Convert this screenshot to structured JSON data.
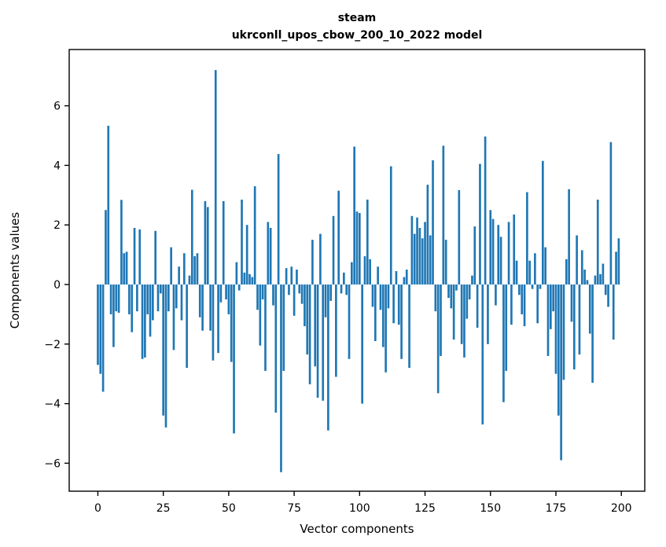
{
  "chart_data": {
    "type": "bar",
    "title": "steam",
    "subtitle": "ukrconll_upos_cbow_200_10_2022 model",
    "xlabel": "Vector components",
    "ylabel": "Components values",
    "bar_color": "#1f77b4",
    "axis_color": "#000000",
    "background_color": "#ffffff",
    "legend": "none",
    "grid": false,
    "n_components": 200,
    "xticks": [
      0,
      25,
      50,
      75,
      100,
      125,
      150,
      175,
      200
    ],
    "yticks": [
      -6,
      -4,
      -2,
      0,
      2,
      4,
      6
    ],
    "xlim": [
      -10.95,
      208.95
    ],
    "ylim": [
      -6.94,
      7.89
    ],
    "values": [
      -2.7,
      -3.0,
      -3.6,
      2.5,
      5.33,
      -1.0,
      -2.1,
      -0.9,
      -0.95,
      2.84,
      1.05,
      1.1,
      -1.0,
      -1.6,
      1.9,
      -0.9,
      1.85,
      -2.5,
      -2.45,
      -1.0,
      -1.75,
      -1.2,
      1.8,
      -0.9,
      -0.3,
      -4.4,
      -4.8,
      -0.9,
      1.25,
      -2.2,
      -0.8,
      0.6,
      -1.2,
      1.05,
      -2.8,
      0.3,
      3.18,
      0.95,
      1.05,
      -1.1,
      -1.55,
      2.8,
      2.6,
      -1.55,
      -2.55,
      7.2,
      -2.3,
      -0.6,
      2.8,
      -0.5,
      -1.0,
      -2.6,
      -5.0,
      0.75,
      -0.2,
      2.85,
      0.4,
      2.0,
      0.35,
      0.25,
      3.3,
      -0.85,
      -2.05,
      -0.5,
      -2.9,
      2.1,
      1.9,
      -0.7,
      -4.3,
      4.38,
      -6.3,
      -2.9,
      0.55,
      -0.35,
      0.6,
      -1.05,
      0.5,
      -0.3,
      -0.65,
      -1.4,
      -2.35,
      -3.35,
      1.5,
      -2.75,
      -3.8,
      1.7,
      -3.9,
      -1.1,
      -4.9,
      -0.55,
      2.3,
      -3.1,
      3.15,
      -0.3,
      0.4,
      -0.35,
      -2.5,
      0.75,
      4.63,
      2.45,
      2.4,
      -4.0,
      0.95,
      2.85,
      0.85,
      -0.75,
      -1.9,
      0.6,
      -0.85,
      -2.1,
      -2.95,
      -0.8,
      3.97,
      -1.3,
      0.45,
      -1.35,
      -2.5,
      0.25,
      0.5,
      -2.8,
      2.3,
      1.7,
      2.25,
      1.9,
      1.55,
      2.1,
      3.35,
      1.65,
      4.17,
      -0.9,
      -3.65,
      -2.4,
      4.66,
      1.5,
      -0.45,
      -0.8,
      -1.85,
      -0.2,
      3.17,
      -2.0,
      -2.45,
      -1.15,
      -0.5,
      0.3,
      1.95,
      -1.45,
      4.05,
      -4.7,
      4.97,
      -2.0,
      2.5,
      2.2,
      -0.7,
      2.0,
      1.6,
      -3.95,
      -2.9,
      2.1,
      -1.35,
      2.35,
      0.8,
      -0.35,
      -1.0,
      -1.4,
      3.1,
      0.8,
      -0.15,
      1.05,
      -1.3,
      -0.15,
      4.15,
      1.25,
      -2.4,
      -1.5,
      -0.9,
      -3.0,
      -4.4,
      -5.9,
      -3.2,
      0.85,
      3.2,
      -1.25,
      -2.85,
      1.65,
      -2.35,
      1.15,
      0.5,
      0.15,
      -1.65,
      -3.3,
      0.3,
      2.85,
      0.35,
      0.7,
      -0.35,
      -0.75,
      4.78,
      -1.85,
      1.1,
      1.55
    ]
  }
}
